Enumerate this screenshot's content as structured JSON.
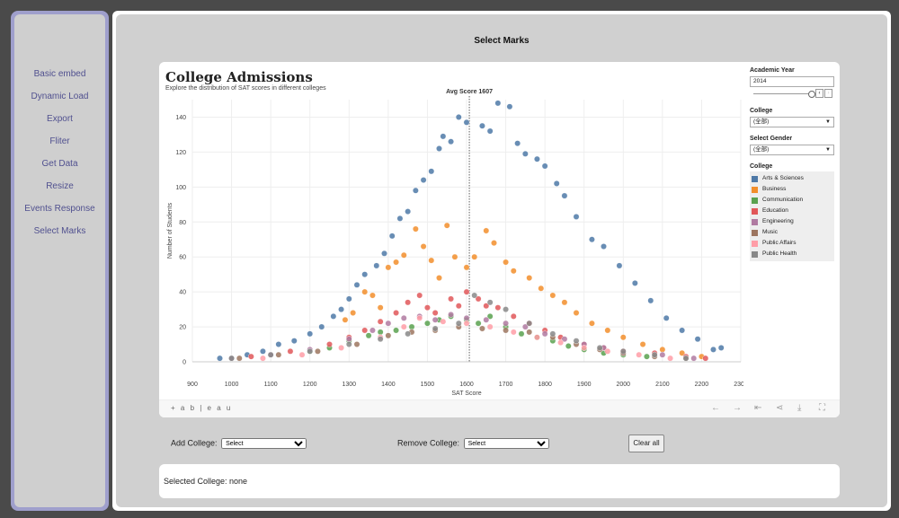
{
  "nav": [
    "Basic embed",
    "Dynamic Load",
    "Export",
    "Fliter",
    "Get Data",
    "Resize",
    "Events Response",
    "Select Marks"
  ],
  "page_title": "Select Marks",
  "viz": {
    "title": "College Admissions",
    "subtitle": "Explore the distribution of SAT scores in different colleges",
    "academic_year_label": "Academic Year",
    "academic_year_value": "2014",
    "college_label": "College",
    "college_value": "(全部)",
    "gender_label": "Select Gender",
    "gender_value": "(全部)",
    "legend_title": "College",
    "legend": [
      {
        "name": "Arts & Sciences",
        "color": "#4e79a7"
      },
      {
        "name": "Business",
        "color": "#f28e2b"
      },
      {
        "name": "Communication",
        "color": "#59a14f"
      },
      {
        "name": "Education",
        "color": "#e15759"
      },
      {
        "name": "Engineering",
        "color": "#b07aa1"
      },
      {
        "name": "Music",
        "color": "#9c755f"
      },
      {
        "name": "Public Affairs",
        "color": "#ff9da7"
      },
      {
        "name": "Public Health",
        "color": "#888888"
      }
    ],
    "logo": "+ a b | e a u",
    "toolbar_icons": [
      "undo-icon",
      "redo-icon",
      "revert-icon",
      "share-icon",
      "download-icon",
      "fullscreen-icon"
    ]
  },
  "chart_data": {
    "type": "scatter",
    "xlabel": "SAT Score",
    "ylabel": "Number of Students",
    "xlim": [
      900,
      2300
    ],
    "ylim": [
      0,
      150
    ],
    "xticks": [
      900,
      1000,
      1100,
      1200,
      1300,
      1400,
      1500,
      1600,
      1700,
      1800,
      1900,
      2000,
      2100,
      2200,
      2300
    ],
    "yticks": [
      0,
      20,
      40,
      60,
      80,
      100,
      120,
      140
    ],
    "reference_line": {
      "x": 1607,
      "label": "Avg Score 1607"
    },
    "series": [
      {
        "name": "Arts & Sciences",
        "points": [
          [
            970,
            2
          ],
          [
            1000,
            2
          ],
          [
            1040,
            4
          ],
          [
            1080,
            6
          ],
          [
            1120,
            10
          ],
          [
            1160,
            12
          ],
          [
            1200,
            16
          ],
          [
            1230,
            20
          ],
          [
            1260,
            26
          ],
          [
            1280,
            30
          ],
          [
            1300,
            36
          ],
          [
            1320,
            44
          ],
          [
            1340,
            50
          ],
          [
            1370,
            55
          ],
          [
            1390,
            62
          ],
          [
            1410,
            72
          ],
          [
            1430,
            82
          ],
          [
            1450,
            86
          ],
          [
            1470,
            98
          ],
          [
            1490,
            104
          ],
          [
            1510,
            109
          ],
          [
            1530,
            122
          ],
          [
            1540,
            129
          ],
          [
            1560,
            126
          ],
          [
            1580,
            140
          ],
          [
            1600,
            137
          ],
          [
            1640,
            135
          ],
          [
            1660,
            132
          ],
          [
            1680,
            148
          ],
          [
            1710,
            146
          ],
          [
            1730,
            125
          ],
          [
            1750,
            119
          ],
          [
            1780,
            116
          ],
          [
            1800,
            112
          ],
          [
            1830,
            102
          ],
          [
            1850,
            95
          ],
          [
            1880,
            83
          ],
          [
            1920,
            70
          ],
          [
            1950,
            66
          ],
          [
            1990,
            55
          ],
          [
            2030,
            45
          ],
          [
            2070,
            35
          ],
          [
            2110,
            25
          ],
          [
            2150,
            18
          ],
          [
            2190,
            13
          ],
          [
            2230,
            7
          ],
          [
            2250,
            8
          ]
        ]
      },
      {
        "name": "Business",
        "points": [
          [
            1290,
            24
          ],
          [
            1310,
            28
          ],
          [
            1340,
            40
          ],
          [
            1360,
            38
          ],
          [
            1380,
            31
          ],
          [
            1400,
            54
          ],
          [
            1420,
            57
          ],
          [
            1440,
            61
          ],
          [
            1470,
            76
          ],
          [
            1490,
            66
          ],
          [
            1510,
            58
          ],
          [
            1530,
            48
          ],
          [
            1550,
            78
          ],
          [
            1570,
            60
          ],
          [
            1600,
            54
          ],
          [
            1620,
            60
          ],
          [
            1650,
            75
          ],
          [
            1670,
            68
          ],
          [
            1700,
            57
          ],
          [
            1720,
            52
          ],
          [
            1760,
            48
          ],
          [
            1790,
            42
          ],
          [
            1820,
            38
          ],
          [
            1850,
            34
          ],
          [
            1880,
            28
          ],
          [
            1920,
            22
          ],
          [
            1960,
            18
          ],
          [
            2000,
            14
          ],
          [
            2050,
            10
          ],
          [
            2100,
            7
          ],
          [
            2150,
            5
          ],
          [
            2200,
            3
          ]
        ]
      },
      {
        "name": "Communication",
        "points": [
          [
            1000,
            2
          ],
          [
            1100,
            4
          ],
          [
            1200,
            6
          ],
          [
            1250,
            8
          ],
          [
            1300,
            12
          ],
          [
            1350,
            15
          ],
          [
            1380,
            17
          ],
          [
            1420,
            18
          ],
          [
            1460,
            20
          ],
          [
            1500,
            22
          ],
          [
            1530,
            24
          ],
          [
            1560,
            26
          ],
          [
            1600,
            24
          ],
          [
            1630,
            22
          ],
          [
            1660,
            26
          ],
          [
            1700,
            20
          ],
          [
            1740,
            16
          ],
          [
            1780,
            14
          ],
          [
            1820,
            12
          ],
          [
            1860,
            9
          ],
          [
            1900,
            7
          ],
          [
            1950,
            5
          ],
          [
            2000,
            4
          ],
          [
            2060,
            3
          ]
        ]
      },
      {
        "name": "Education",
        "points": [
          [
            1050,
            3
          ],
          [
            1150,
            6
          ],
          [
            1250,
            10
          ],
          [
            1300,
            14
          ],
          [
            1340,
            18
          ],
          [
            1380,
            23
          ],
          [
            1420,
            28
          ],
          [
            1450,
            34
          ],
          [
            1480,
            38
          ],
          [
            1500,
            31
          ],
          [
            1520,
            28
          ],
          [
            1560,
            36
          ],
          [
            1580,
            32
          ],
          [
            1600,
            40
          ],
          [
            1630,
            36
          ],
          [
            1650,
            32
          ],
          [
            1680,
            31
          ],
          [
            1720,
            26
          ],
          [
            1760,
            22
          ],
          [
            1800,
            18
          ],
          [
            1840,
            14
          ],
          [
            1900,
            10
          ],
          [
            1950,
            8
          ],
          [
            2000,
            6
          ],
          [
            2080,
            5
          ],
          [
            2160,
            3
          ],
          [
            2210,
            2
          ]
        ]
      },
      {
        "name": "Engineering",
        "points": [
          [
            1000,
            2
          ],
          [
            1100,
            4
          ],
          [
            1200,
            7
          ],
          [
            1300,
            13
          ],
          [
            1360,
            18
          ],
          [
            1400,
            22
          ],
          [
            1440,
            25
          ],
          [
            1480,
            26
          ],
          [
            1520,
            24
          ],
          [
            1560,
            27
          ],
          [
            1600,
            25
          ],
          [
            1650,
            24
          ],
          [
            1700,
            22
          ],
          [
            1750,
            20
          ],
          [
            1800,
            16
          ],
          [
            1850,
            13
          ],
          [
            1900,
            10
          ],
          [
            1950,
            8
          ],
          [
            2000,
            5
          ],
          [
            2100,
            4
          ],
          [
            2180,
            2
          ]
        ]
      },
      {
        "name": "Music",
        "points": [
          [
            1020,
            2
          ],
          [
            1120,
            4
          ],
          [
            1220,
            6
          ],
          [
            1320,
            10
          ],
          [
            1400,
            15
          ],
          [
            1460,
            17
          ],
          [
            1520,
            18
          ],
          [
            1580,
            20
          ],
          [
            1640,
            19
          ],
          [
            1700,
            18
          ],
          [
            1760,
            17
          ],
          [
            1820,
            14
          ],
          [
            1880,
            10
          ],
          [
            1940,
            7
          ],
          [
            2000,
            5
          ],
          [
            2080,
            3
          ],
          [
            2160,
            2
          ]
        ]
      },
      {
        "name": "Public Affairs",
        "points": [
          [
            1080,
            2
          ],
          [
            1180,
            4
          ],
          [
            1280,
            8
          ],
          [
            1380,
            14
          ],
          [
            1440,
            20
          ],
          [
            1480,
            25
          ],
          [
            1540,
            23
          ],
          [
            1600,
            22
          ],
          [
            1660,
            20
          ],
          [
            1720,
            17
          ],
          [
            1780,
            14
          ],
          [
            1840,
            11
          ],
          [
            1900,
            8
          ],
          [
            1960,
            6
          ],
          [
            2040,
            4
          ],
          [
            2120,
            2
          ]
        ]
      },
      {
        "name": "Public Health",
        "points": [
          [
            1000,
            2
          ],
          [
            1100,
            4
          ],
          [
            1200,
            6
          ],
          [
            1300,
            10
          ],
          [
            1380,
            13
          ],
          [
            1450,
            16
          ],
          [
            1520,
            19
          ],
          [
            1580,
            22
          ],
          [
            1620,
            38
          ],
          [
            1660,
            34
          ],
          [
            1700,
            30
          ],
          [
            1760,
            22
          ],
          [
            1820,
            16
          ],
          [
            1880,
            12
          ],
          [
            1940,
            8
          ],
          [
            2000,
            6
          ],
          [
            2080,
            4
          ],
          [
            2160,
            2
          ]
        ]
      }
    ]
  },
  "controls": {
    "add_label": "Add College:",
    "add_value": "Select",
    "remove_label": "Remove College:",
    "remove_value": "Select",
    "clear_label": "Clear all"
  },
  "selected_text": "Selected College: none"
}
